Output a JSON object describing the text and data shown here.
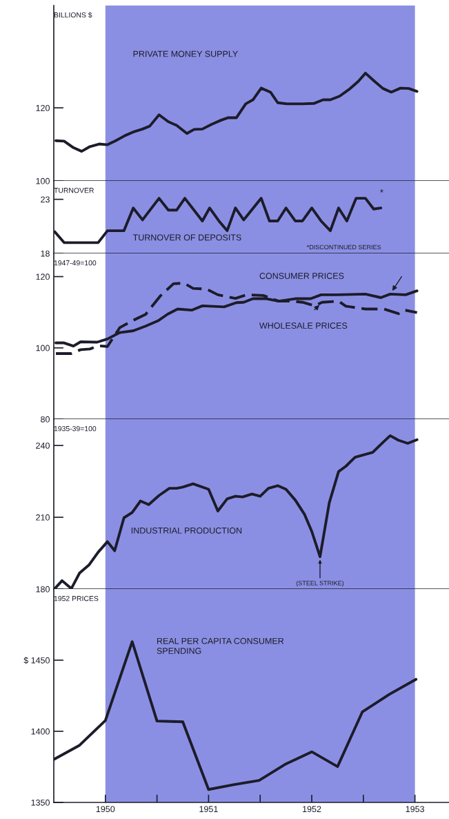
{
  "chart_data": [
    {
      "type": "line",
      "ylabel": "BILLIONS $",
      "xlim": [
        1949.5,
        1953.33
      ],
      "ylim": [
        100,
        148
      ],
      "yticks": [
        100,
        120
      ],
      "tick_labels": "y",
      "legend": false,
      "grid": false,
      "bands": [
        {
          "axis": "x",
          "from": 1950,
          "to": 1953,
          "color": "#8b8fe3"
        }
      ],
      "series": [
        {
          "name": "PRIVATE MONEY SUPPLY",
          "color": "#1c1c2a",
          "line_style": "solid",
          "x": [
            1949.52,
            1949.6,
            1949.69,
            1949.77,
            1949.85,
            1949.94,
            1950.02,
            1950.1,
            1950.19,
            1950.28,
            1950.36,
            1950.43,
            1950.52,
            1950.61,
            1950.69,
            1950.79,
            1950.86,
            1950.94,
            1951.03,
            1951.12,
            1951.19,
            1951.27,
            1951.36,
            1951.43,
            1951.51,
            1951.6,
            1951.67,
            1951.76,
            1951.91,
            1952.02,
            1952.11,
            1952.18,
            1952.27,
            1952.36,
            1952.45,
            1952.52,
            1952.61,
            1952.69,
            1952.77,
            1952.86,
            1952.94,
            1953.02
          ],
          "values": [
            111.0,
            110.9,
            109.1,
            108.1,
            109.4,
            110.1,
            109.9,
            111.0,
            112.4,
            113.5,
            114.2,
            115.0,
            118.1,
            116.2,
            115.2,
            113.0,
            114.1,
            114.2,
            115.5,
            116.6,
            117.3,
            117.3,
            121.1,
            122.2,
            125.4,
            124.3,
            121.4,
            121.1,
            121.1,
            121.2,
            122.2,
            122.2,
            123.2,
            125.0,
            127.2,
            129.5,
            127.2,
            125.3,
            124.3,
            125.4,
            125.3,
            124.5
          ]
        }
      ]
    },
    {
      "type": "line",
      "ylabel": "TURNOVER",
      "xlim": [
        1949.5,
        1953.33
      ],
      "ylim": [
        18,
        24.7
      ],
      "yticks": [
        18,
        23
      ],
      "tick_labels": "y",
      "legend": false,
      "grid": false,
      "bands": [
        {
          "axis": "x",
          "from": 1950,
          "to": 1953,
          "color": "#8b8fe3"
        }
      ],
      "annotations": [
        "*",
        "*DISCONTINUED SERIES"
      ],
      "series": [
        {
          "name": "TURNOVER OF DEPOSITS",
          "color": "#1c1c2a",
          "line_style": "solid",
          "x": [
            1949.51,
            1949.6,
            1949.93,
            1950.02,
            1950.18,
            1950.27,
            1950.36,
            1950.52,
            1950.61,
            1950.69,
            1950.77,
            1950.94,
            1951.01,
            1951.1,
            1951.18,
            1951.26,
            1951.34,
            1951.51,
            1951.59,
            1951.67,
            1951.75,
            1951.84,
            1951.91,
            1952.0,
            1952.09,
            1952.18,
            1952.26,
            1952.34,
            1952.43,
            1952.52,
            1952.6,
            1952.67
          ],
          "values": [
            20.0,
            19.0,
            19.0,
            20.1,
            20.1,
            22.2,
            21.1,
            23.1,
            22.0,
            22.0,
            23.1,
            21.0,
            22.2,
            21.0,
            20.1,
            22.2,
            21.1,
            23.1,
            21.0,
            21.0,
            22.2,
            21.0,
            21.0,
            22.2,
            21.0,
            20.1,
            22.2,
            21.0,
            23.1,
            23.1,
            22.1,
            22.2
          ]
        }
      ]
    },
    {
      "type": "line",
      "ylabel": "1947-49=100",
      "xlim": [
        1949.5,
        1953.33
      ],
      "ylim": [
        80,
        126.5
      ],
      "yticks": [
        80,
        100,
        120
      ],
      "tick_labels": "y",
      "legend": false,
      "grid": false,
      "bands": [
        {
          "axis": "x",
          "from": 1950,
          "to": 1953,
          "color": "#8b8fe3"
        }
      ],
      "series": [
        {
          "name": "CONSUMER PRICES",
          "color": "#1c1c2a",
          "line_style": "solid",
          "x": [
            1949.52,
            1949.6,
            1949.69,
            1949.76,
            1949.92,
            1950.02,
            1950.14,
            1950.27,
            1950.39,
            1950.51,
            1950.6,
            1950.7,
            1950.84,
            1950.94,
            1951.15,
            1951.27,
            1951.34,
            1951.43,
            1951.56,
            1951.68,
            1951.84,
            1951.99,
            1952.09,
            1952.24,
            1952.52,
            1952.67,
            1952.76,
            1952.91,
            1953.02
          ],
          "values": [
            101.4,
            101.4,
            100.5,
            101.7,
            101.6,
            102.5,
            104.3,
            104.8,
            106.1,
            107.6,
            109.4,
            110.9,
            110.6,
            111.8,
            111.5,
            112.7,
            112.8,
            113.8,
            113.8,
            113.1,
            113.8,
            113.8,
            114.9,
            114.9,
            115.1,
            114.1,
            115.1,
            114.9,
            116.0
          ]
        },
        {
          "name": "WHOLESALE PRICES",
          "color": "#1c1c2a",
          "line_style": "dashed",
          "x": [
            1949.52,
            1949.67,
            1949.76,
            1949.85,
            1949.93,
            1950.02,
            1950.14,
            1950.26,
            1950.39,
            1950.53,
            1950.66,
            1950.76,
            1950.85,
            1950.98,
            1951.09,
            1951.26,
            1951.37,
            1951.53,
            1951.68,
            1951.81,
            1951.91,
            1952.03,
            1952.1,
            1952.26,
            1952.33,
            1952.52,
            1952.7,
            1952.84,
            1952.9,
            1953.02
          ],
          "values": [
            98.4,
            98.4,
            99.5,
            99.7,
            100.6,
            100.4,
            105.7,
            107.6,
            109.4,
            114.5,
            118.0,
            118.2,
            116.7,
            116.5,
            114.9,
            113.9,
            114.9,
            114.7,
            113.1,
            113.1,
            112.8,
            111.8,
            112.8,
            113.1,
            111.7,
            110.9,
            110.9,
            109.6,
            110.6,
            109.9
          ]
        }
      ]
    },
    {
      "type": "line",
      "ylabel": "1935-39=100",
      "xlim": [
        1949.5,
        1953.33
      ],
      "ylim": [
        180,
        251
      ],
      "yticks": [
        180,
        210,
        240
      ],
      "tick_labels": "y",
      "legend": false,
      "grid": false,
      "bands": [
        {
          "axis": "x",
          "from": 1950,
          "to": 1953,
          "color": "#8b8fe3"
        }
      ],
      "annotations": [
        {
          "text": "(STEEL STRIKE)",
          "x": 1952.08,
          "y": 193.5
        }
      ],
      "series": [
        {
          "name": "INDUSTRIAL PRODUCTION",
          "color": "#1c1c2a",
          "line_style": "solid",
          "x": [
            1949.51,
            1949.58,
            1949.67,
            1949.75,
            1949.84,
            1949.93,
            1950.02,
            1950.09,
            1950.18,
            1950.26,
            1950.34,
            1950.42,
            1950.52,
            1950.62,
            1950.69,
            1950.75,
            1950.85,
            1951.0,
            1951.09,
            1951.18,
            1951.26,
            1951.33,
            1951.42,
            1951.5,
            1951.58,
            1951.67,
            1951.75,
            1951.84,
            1951.93,
            1952.0,
            1952.08,
            1952.17,
            1952.26,
            1952.33,
            1952.42,
            1952.51,
            1952.59,
            1952.69,
            1952.76,
            1952.84,
            1952.93,
            1953.02
          ],
          "values": [
            180.2,
            183.5,
            180.2,
            186.7,
            190.0,
            195.4,
            199.8,
            196.0,
            209.8,
            212.0,
            216.8,
            215.3,
            219.1,
            222.1,
            222.1,
            222.6,
            224.0,
            221.7,
            212.6,
            217.7,
            218.8,
            218.5,
            219.7,
            218.8,
            222.1,
            223.2,
            221.7,
            217.2,
            211.2,
            204.1,
            193.5,
            216.1,
            229.1,
            231.3,
            235.1,
            236.2,
            237.1,
            241.3,
            244.1,
            242.2,
            240.9,
            242.4
          ]
        }
      ]
    },
    {
      "type": "line",
      "ylabel": "1952 PRICES",
      "xlim": [
        1949.5,
        1953.33
      ],
      "ylim": [
        1350,
        1500
      ],
      "yticks": [
        1350,
        1400,
        {
          "value": 1450,
          "label": "$ 1450"
        }
      ],
      "xticks": [
        1950,
        {
          "value": 1950.5,
          "label": null
        },
        1951,
        {
          "value": 1951.5,
          "label": null
        },
        1952,
        {
          "value": 1952.5,
          "label": null
        },
        1953
      ],
      "legend": false,
      "grid": false,
      "bands": [
        {
          "axis": "x",
          "from": 1950,
          "to": 1953,
          "color": "#8b8fe3"
        }
      ],
      "series": [
        {
          "name": "REAL PER CAPITA CONSUMER SPENDING",
          "color": "#1c1c2a",
          "line_style": "solid",
          "x": [
            1949.5,
            1949.75,
            1950.0,
            1950.26,
            1950.5,
            1950.75,
            1951.0,
            1951.24,
            1951.49,
            1951.75,
            1952.0,
            1952.25,
            1952.49,
            1952.75,
            1953.01
          ],
          "values": [
            1380.2,
            1390.2,
            1407.6,
            1463.0,
            1407.2,
            1406.7,
            1359.1,
            1362.4,
            1365.5,
            1377.1,
            1385.6,
            1375.2,
            1413.6,
            1425.9,
            1436.5
          ]
        }
      ]
    }
  ]
}
